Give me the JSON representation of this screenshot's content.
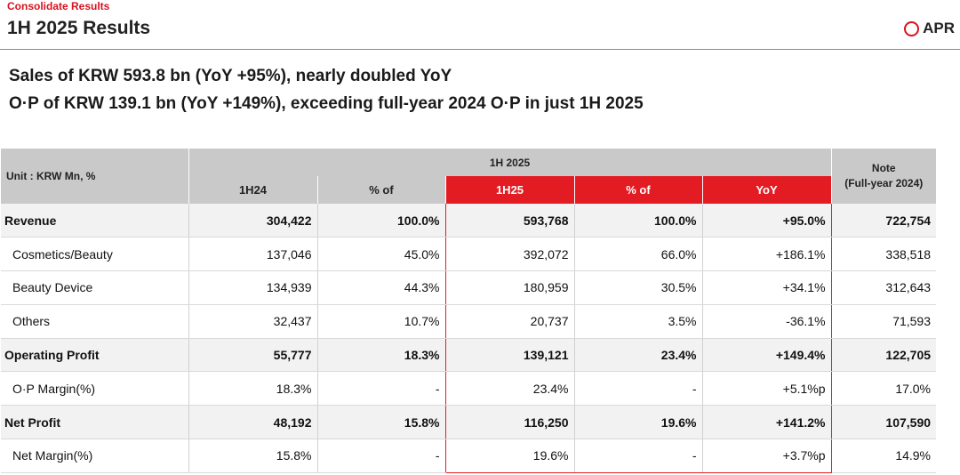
{
  "header": {
    "section": "Consolidate Results",
    "title": "1H 2025 Results",
    "brand": "APR"
  },
  "headlines": [
    "Sales of KRW 593.8 bn (YoY +95%), nearly doubled YoY",
    "O·P of KRW 139.1 bn (YoY +149%), exceeding full-year 2024 O·P in just 1H 2025"
  ],
  "table": {
    "unit_label": "Unit : KRW Mn, %",
    "group_label": "1H 2025",
    "note_label_1": "Note",
    "note_label_2": "(Full-year 2024)",
    "columns": [
      "1H24",
      "% of",
      "1H25",
      "% of",
      "YoY"
    ],
    "rows": [
      {
        "label": "Revenue",
        "cells": [
          "304,422",
          "100.0%",
          "593,768",
          "100.0%",
          "+95.0%",
          "722,754"
        ]
      },
      {
        "label": "Cosmetics/Beauty",
        "cells": [
          "137,046",
          "45.0%",
          "392,072",
          "66.0%",
          "+186.1%",
          "338,518"
        ]
      },
      {
        "label": "Beauty Device",
        "cells": [
          "134,939",
          "44.3%",
          "180,959",
          "30.5%",
          "+34.1%",
          "312,643"
        ]
      },
      {
        "label": "Others",
        "cells": [
          "32,437",
          "10.7%",
          "20,737",
          "3.5%",
          "-36.1%",
          "71,593"
        ]
      },
      {
        "label": "Operating Profit",
        "cells": [
          "55,777",
          "18.3%",
          "139,121",
          "23.4%",
          "+149.4%",
          "122,705"
        ]
      },
      {
        "label": "O·P Margin(%)",
        "cells": [
          "18.3%",
          "-",
          "23.4%",
          "-",
          "+5.1%p",
          "17.0%"
        ]
      },
      {
        "label": "Net Profit",
        "cells": [
          "48,192",
          "15.8%",
          "116,250",
          "19.6%",
          "+141.2%",
          "107,590"
        ]
      },
      {
        "label": "Net Margin(%)",
        "cells": [
          "15.8%",
          "-",
          "19.6%",
          "-",
          "+3.7%p",
          "14.9%"
        ]
      }
    ]
  },
  "colors": {
    "accent_red": "#e31b23",
    "header_gray": "#c9c9c9",
    "major_row_bg": "#f2f2f2"
  }
}
